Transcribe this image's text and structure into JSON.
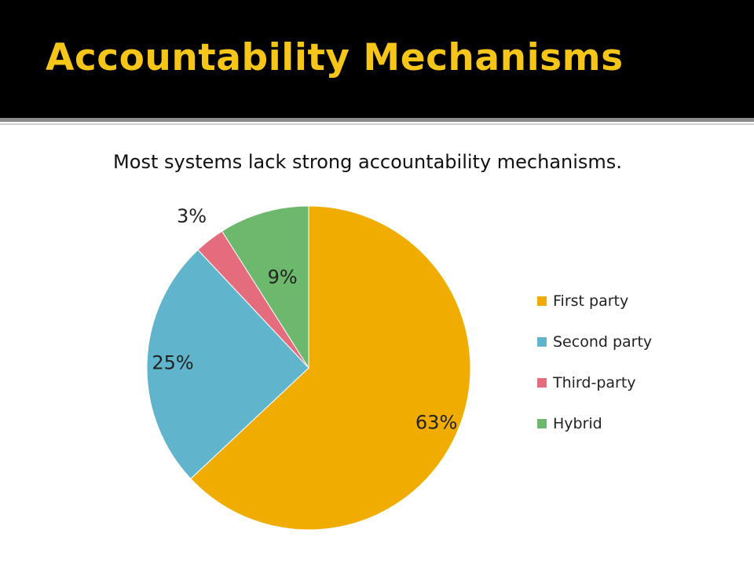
{
  "slide": {
    "title": "Accountability Mechanisms",
    "subtitle": "Most systems lack strong accountability mechanisms."
  },
  "colors": {
    "title_band": "#000000",
    "title_text": "#f5c518"
  },
  "chart_data": {
    "type": "pie",
    "slices": [
      {
        "name": "First party",
        "value": 63,
        "label": "63%",
        "color": "#f0ac00"
      },
      {
        "name": "Second party",
        "value": 25,
        "label": "25%",
        "color": "#60b4cc"
      },
      {
        "name": "Third-party",
        "value": 3,
        "label": "3%",
        "color": "#e46c7c"
      },
      {
        "name": "Hybrid",
        "value": 9,
        "label": "9%",
        "color": "#6cb86c"
      }
    ],
    "start": "12 o'clock",
    "direction": "clockwise",
    "legend_position": "right"
  }
}
